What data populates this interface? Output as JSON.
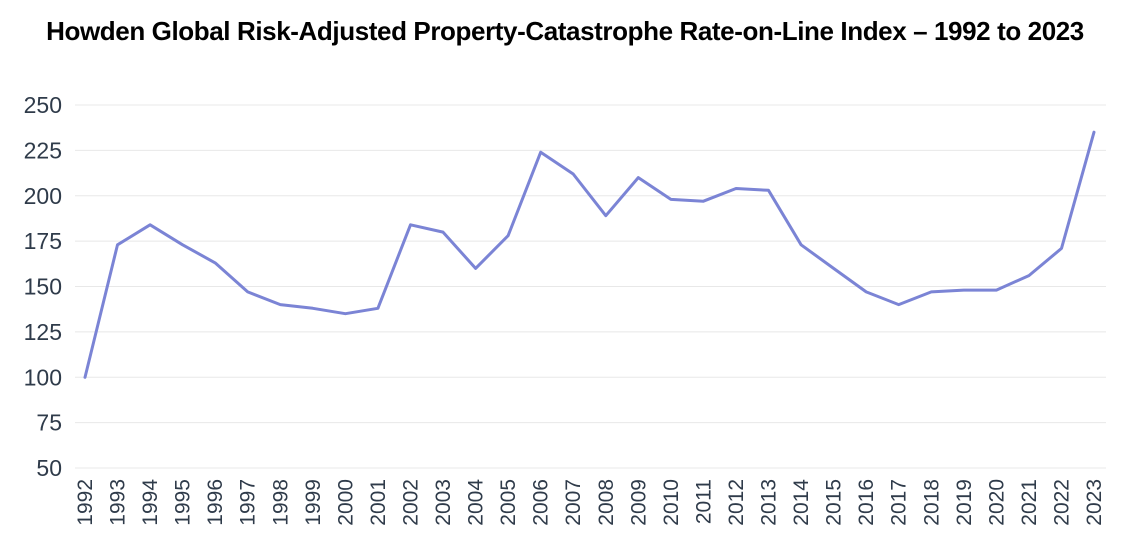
{
  "title": "Howden Global Risk-Adjusted Property-Catastrophe Rate-on-Line Index – 1992 to 2023",
  "chart_data": {
    "type": "line",
    "title": "Howden Global Risk-Adjusted Property-Catastrophe Rate-on-Line Index – 1992 to 2023",
    "x": [
      1992,
      1993,
      1994,
      1995,
      1996,
      1997,
      1998,
      1999,
      2000,
      2001,
      2002,
      2003,
      2004,
      2005,
      2006,
      2007,
      2008,
      2009,
      2010,
      2011,
      2012,
      2013,
      2014,
      2015,
      2016,
      2017,
      2018,
      2019,
      2020,
      2021,
      2022,
      2023
    ],
    "series": [
      {
        "name": "Rate-on-Line Index",
        "values": [
          100,
          173,
          184,
          173,
          163,
          147,
          140,
          138,
          135,
          138,
          184,
          180,
          160,
          178,
          224,
          212,
          189,
          210,
          198,
          197,
          204,
          203,
          173,
          160,
          147,
          140,
          147,
          148,
          148,
          156,
          171,
          235
        ]
      }
    ],
    "xlabel": "",
    "ylabel": "",
    "ylim": [
      50,
      250
    ],
    "yticks": [
      50,
      75,
      100,
      125,
      150,
      175,
      200,
      225,
      250
    ],
    "grid": true,
    "legend": false,
    "line_color": "#7B84D5",
    "gridline_color": "#E8E8E8",
    "label_color": "#2F3B4A",
    "title_color": "#000000"
  }
}
